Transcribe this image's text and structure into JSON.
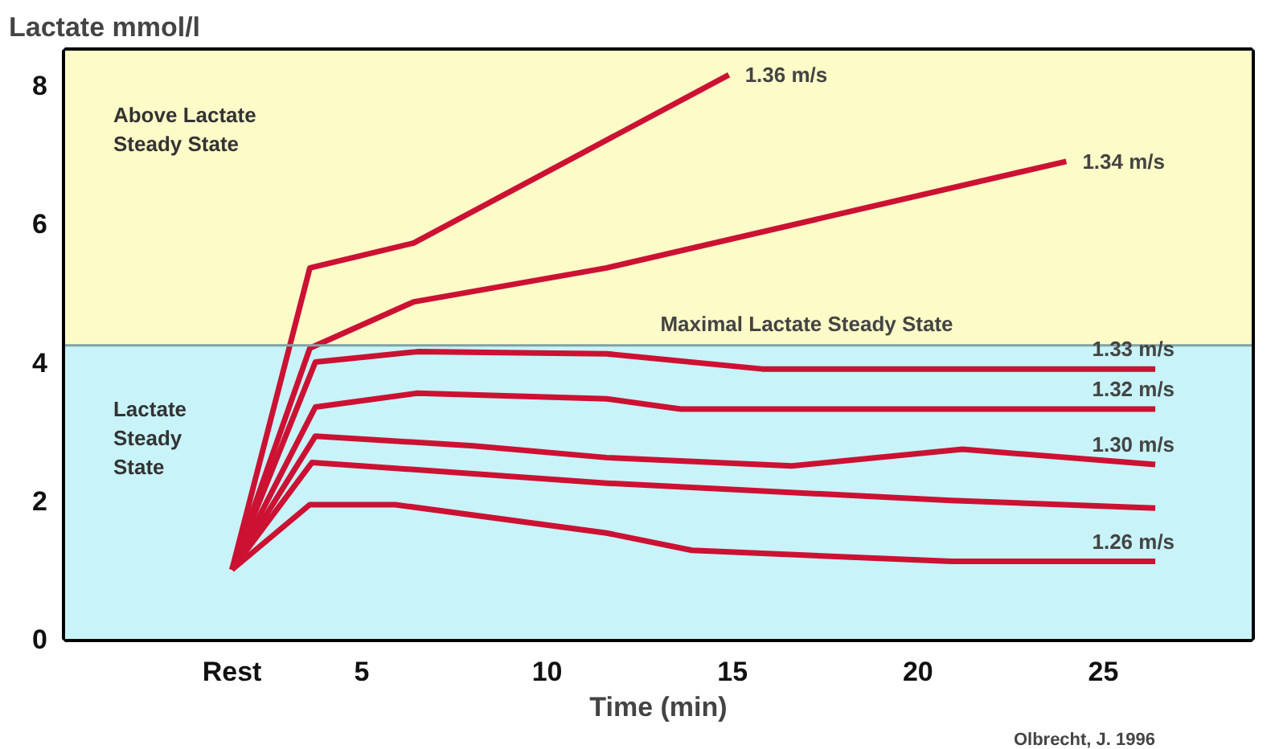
{
  "chart_data": {
    "type": "line",
    "ylabel": "Lactate mmol/l",
    "xlabel": "Time (min)",
    "xlim": [
      -3,
      29
    ],
    "ylim": [
      0,
      8.5
    ],
    "xticks": [
      {
        "value": 1.5,
        "label": "Rest"
      },
      5,
      10,
      15,
      20,
      25
    ],
    "yticks": [
      0,
      2,
      4,
      6,
      8
    ],
    "line_style": "solid",
    "series": [
      {
        "name": "1.36 m/s",
        "color": "#cc1133",
        "x": [
          1.5,
          3.6,
          6.4,
          14.9
        ],
        "values": [
          1.0,
          5.36,
          5.72,
          8.15
        ]
      },
      {
        "name": "1.34 m/s",
        "color": "#cc1133",
        "x": [
          1.5,
          3.6,
          6.4,
          11.6,
          24
        ],
        "values": [
          1.0,
          4.2,
          4.87,
          5.36,
          6.9
        ]
      },
      {
        "name": "1.33 m/s",
        "color": "#cc1133",
        "x": [
          1.5,
          3.75,
          6.5,
          11.6,
          15.8,
          26.4
        ],
        "values": [
          1.0,
          4.0,
          4.15,
          4.12,
          3.9,
          3.9
        ]
      },
      {
        "name": "1.32 m/s",
        "color": "#cc1133",
        "x": [
          1.5,
          3.75,
          6.5,
          11.6,
          13.6,
          26.4
        ],
        "values": [
          1.0,
          3.35,
          3.55,
          3.47,
          3.32,
          3.32
        ]
      },
      {
        "name": "1.30 m/s",
        "color": "#cc1133",
        "x": [
          1.5,
          3.75,
          8.0,
          11.6,
          16.6,
          21.2,
          26.4
        ],
        "values": [
          1.0,
          2.93,
          2.79,
          2.62,
          2.5,
          2.74,
          2.52
        ]
      },
      {
        "color": "#cc1133",
        "x": [
          1.5,
          3.66,
          11.6,
          20.9,
          26.4
        ],
        "values": [
          1.0,
          2.55,
          2.25,
          2.0,
          1.89
        ]
      },
      {
        "name": "1.26 m/s",
        "color": "#cc1133",
        "x": [
          1.5,
          3.6,
          5.9,
          11.6,
          13.9,
          20.9,
          26.4
        ],
        "values": [
          1.0,
          1.94,
          1.94,
          1.53,
          1.28,
          1.12,
          1.12
        ]
      }
    ],
    "bands": [
      {
        "axis": "y",
        "from": 4.24,
        "to": 8.5,
        "label": "Above Lactate\nSteady State",
        "color": "#fdfbc8"
      },
      {
        "axis": "y",
        "from": 0,
        "to": 4.24,
        "label": "Lactate\nSteady\nState",
        "color": "#c8f3f8"
      }
    ],
    "ref_lines": [
      {
        "axis": "y",
        "value": 4.24,
        "label": "Maximal Lactate Steady State",
        "color": "#7fa3a3"
      }
    ],
    "annotations": [
      "Olbrecht, J. 1996"
    ]
  }
}
